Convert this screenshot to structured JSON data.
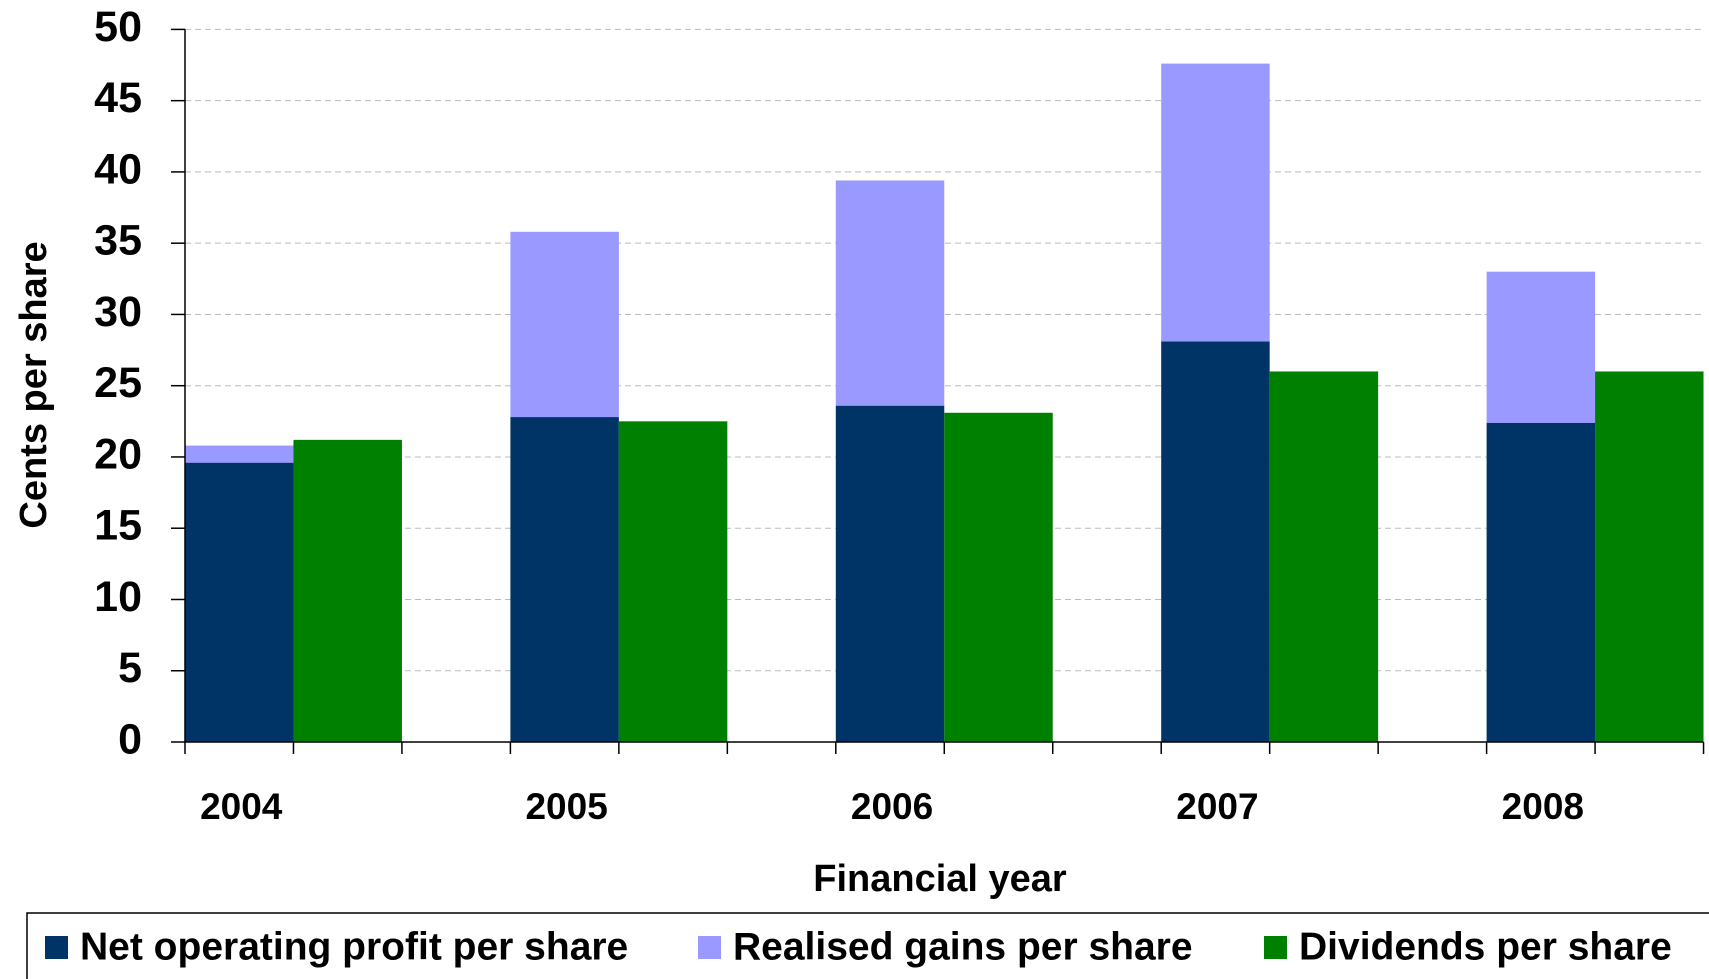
{
  "chart_data": {
    "type": "bar",
    "x_label": "Financial year",
    "y_label": "Cents per share",
    "categories": [
      "2004",
      "2005",
      "2006",
      "2007",
      "2008"
    ],
    "series": [
      {
        "name": "Net operating profit per share",
        "color": "#003366",
        "stack": 0,
        "values": [
          19.6,
          22.8,
          23.6,
          28.1,
          22.4
        ]
      },
      {
        "name": "Realised gains per share",
        "color": "#9999ff",
        "stack": 0,
        "values": [
          1.2,
          13.0,
          15.8,
          19.5,
          10.6
        ]
      },
      {
        "name": "Dividends per share",
        "color": "#008000",
        "stack": 1,
        "values": [
          21.2,
          22.5,
          23.1,
          26.0,
          26.0
        ]
      }
    ],
    "ylim": [
      0,
      50
    ],
    "yticks": [
      0,
      5,
      10,
      15,
      20,
      25,
      30,
      35,
      40,
      45,
      50
    ],
    "grid": true,
    "legend": "bottom"
  }
}
